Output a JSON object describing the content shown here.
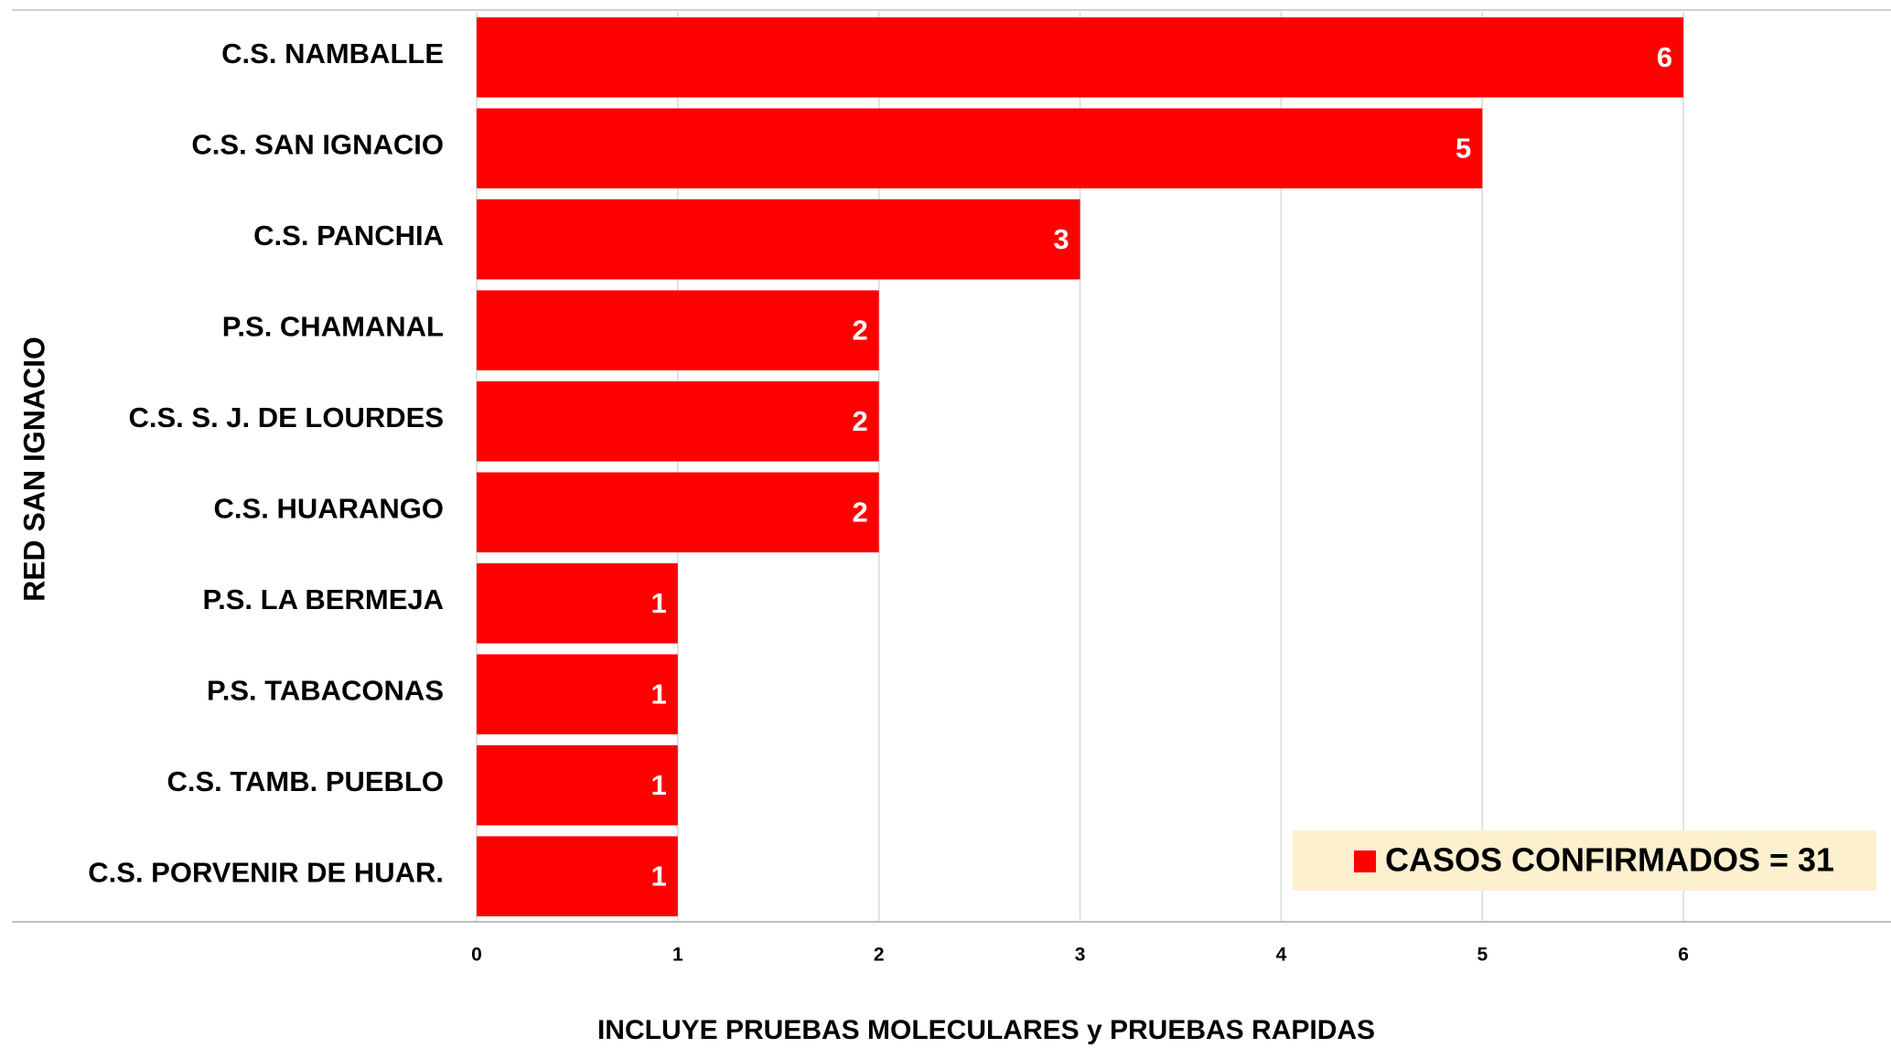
{
  "chart_data": {
    "type": "barh",
    "ylabel": "RED SAN IGNACIO",
    "xlabel": "INCLUYE PRUEBAS MOLECULARES y PRUEBAS RAPIDAS",
    "categories": [
      "C.S. NAMBALLE",
      "C.S. SAN IGNACIO",
      "C.S. PANCHIA",
      "P.S. CHAMANAL",
      "C.S. S. J. DE LOURDES",
      "C.S. HUARANGO",
      "P.S. LA BERMEJA",
      "P.S. TABACONAS",
      "C.S. TAMB. PUEBLO",
      "C.S. PORVENIR DE HUAR."
    ],
    "series": [
      {
        "name": "CASOS CONFIRMADOS = 31",
        "color": "#ff0000",
        "values": [
          6,
          5,
          3,
          2,
          2,
          2,
          1,
          1,
          1,
          1
        ]
      }
    ],
    "xlim": [
      0,
      7
    ],
    "xticks": [
      0,
      1,
      2,
      3,
      4,
      5,
      6
    ],
    "grid": true,
    "legend": "bottom-right"
  }
}
